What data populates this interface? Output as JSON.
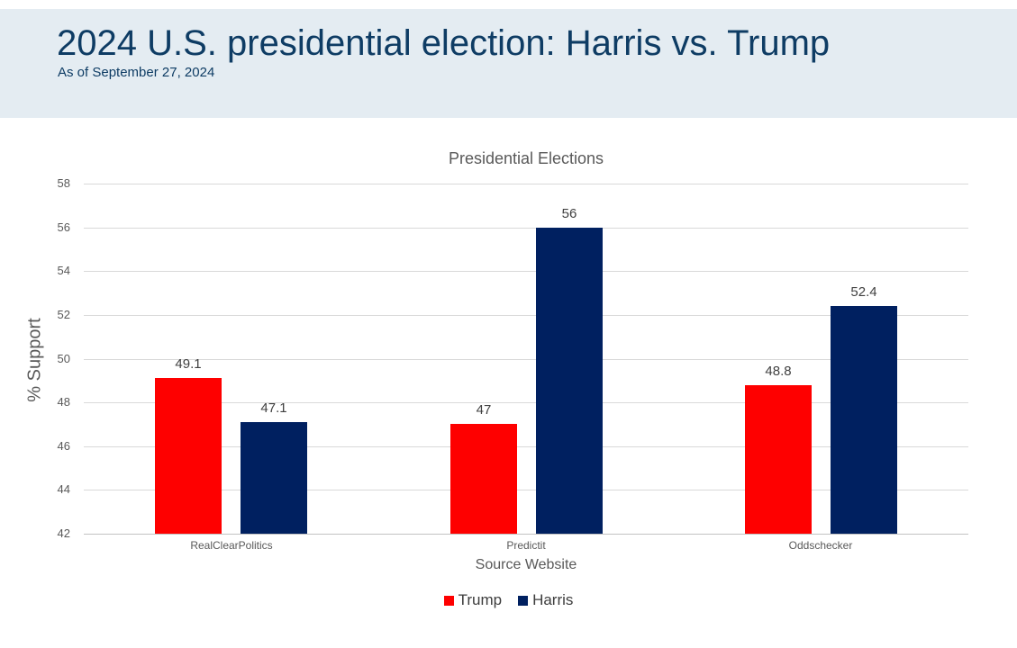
{
  "header": {
    "title": "2024 U.S. presidential election: Harris vs. Trump",
    "subtitle": "As of September 27, 2024",
    "background_color": "#e4ecf2",
    "text_color": "#0e3c64"
  },
  "chart_data": {
    "type": "bar",
    "title": "Presidential Elections",
    "xlabel": "Source Website",
    "ylabel": "% Support",
    "categories": [
      "RealClearPolitics",
      "Predictit",
      "Oddschecker"
    ],
    "series": [
      {
        "name": "Trump",
        "color": "#fe0000",
        "values": [
          49.1,
          47,
          48.8
        ]
      },
      {
        "name": "Harris",
        "color": "#002060",
        "values": [
          47.1,
          56,
          52.4
        ]
      }
    ],
    "ylim": [
      42,
      58
    ],
    "yticks": [
      42,
      44,
      46,
      48,
      50,
      52,
      54,
      56,
      58
    ],
    "grid": true,
    "gridline_color": "#d9d9d9",
    "legend_position": "bottom",
    "data_labels_shown": true
  }
}
